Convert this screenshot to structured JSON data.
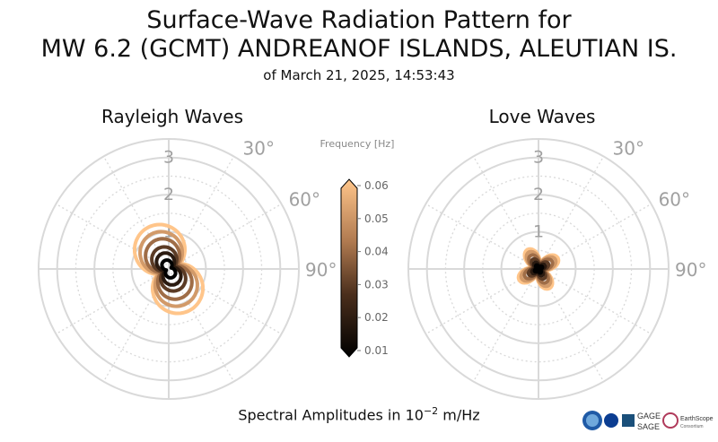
{
  "header": {
    "title_line1": "Surface-Wave Radiation Pattern for",
    "title_line2": "MW 6.2 (GCMT) ANDREANOF ISLANDS, ALEUTIAN IS.",
    "subtitle": "of March 21, 2025, 14:53:43"
  },
  "footer": {
    "label_prefix": "Spectral Amplitudes in 10",
    "label_exp": "−2",
    "label_unit": " m/Hz"
  },
  "colorbar": {
    "label": "Frequency [Hz]",
    "ticks": [
      "0.06",
      "0.05",
      "0.04",
      "0.03",
      "0.02",
      "0.01"
    ]
  },
  "logos": {
    "gage": "GAGE",
    "sage": "SAGE",
    "earthscope": "EarthScope",
    "consortium": "Consortium"
  },
  "colors": {
    "grid": "#d9d9d9",
    "label": "#a0a0a0",
    "low_freq": "#000000",
    "mid_freq": "#b07a50",
    "high_freq": "#ffc58a"
  },
  "chart_data": [
    {
      "type": "polar",
      "title": "Rayleigh Waves",
      "r_ticks": [
        1,
        2,
        3
      ],
      "r_max": 3.5,
      "angle_ticks": [
        "30°",
        "60°",
        "90°"
      ],
      "series": [
        {
          "frequency": 0.01,
          "lobe_azimuths_deg": [
            -25,
            155
          ],
          "peak_amplitude": 0.25,
          "null_amplitude": 0.07
        },
        {
          "frequency": 0.02,
          "lobe_azimuths_deg": [
            -25,
            155
          ],
          "peak_amplitude": 0.45,
          "null_amplitude": 0.12
        },
        {
          "frequency": 0.03,
          "lobe_azimuths_deg": [
            -25,
            155
          ],
          "peak_amplitude": 0.62,
          "null_amplitude": 0.18
        },
        {
          "frequency": 0.04,
          "lobe_azimuths_deg": [
            -25,
            155
          ],
          "peak_amplitude": 0.85,
          "null_amplitude": 0.24
        },
        {
          "frequency": 0.05,
          "lobe_azimuths_deg": [
            -25,
            155
          ],
          "peak_amplitude": 1.05,
          "null_amplitude": 0.3
        },
        {
          "frequency": 0.06,
          "lobe_azimuths_deg": [
            -25,
            155
          ],
          "peak_amplitude": 1.25,
          "null_amplitude": 0.36
        }
      ]
    },
    {
      "type": "polar",
      "title": "Love Waves",
      "r_ticks": [
        1,
        2,
        3
      ],
      "r_max": 3.5,
      "angle_ticks": [
        "30°",
        "60°",
        "90°"
      ],
      "series": [
        {
          "frequency": 0.01,
          "lobe_azimuths_deg": [
            -30,
            60,
            150,
            240
          ],
          "peak_amplitude": 0.12,
          "null_amplitude": 0.03
        },
        {
          "frequency": 0.02,
          "lobe_azimuths_deg": [
            -30,
            60,
            150,
            240
          ],
          "peak_amplitude": 0.2,
          "null_amplitude": 0.05
        },
        {
          "frequency": 0.03,
          "lobe_azimuths_deg": [
            -30,
            60,
            150,
            240
          ],
          "peak_amplitude": 0.3,
          "null_amplitude": 0.08
        },
        {
          "frequency": 0.04,
          "lobe_azimuths_deg": [
            -30,
            60,
            150,
            240
          ],
          "peak_amplitude": 0.42,
          "null_amplitude": 0.1
        },
        {
          "frequency": 0.05,
          "lobe_azimuths_deg": [
            -30,
            60,
            150,
            240
          ],
          "peak_amplitude": 0.52,
          "null_amplitude": 0.13
        },
        {
          "frequency": 0.06,
          "lobe_azimuths_deg": [
            -30,
            60,
            150,
            240
          ],
          "peak_amplitude": 0.6,
          "null_amplitude": 0.16
        }
      ]
    }
  ]
}
